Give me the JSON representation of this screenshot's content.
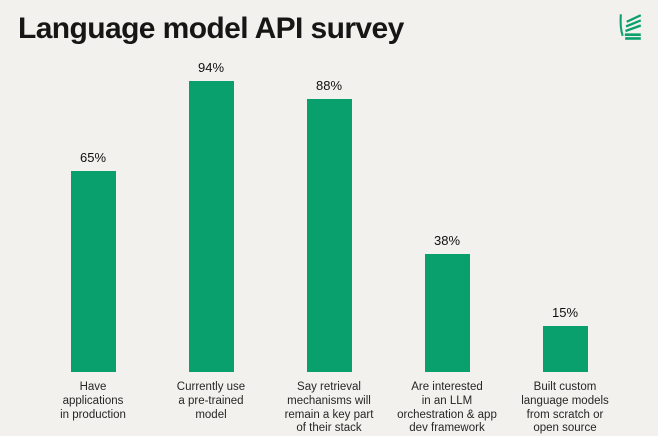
{
  "header": {
    "title": "Language model API survey"
  },
  "logo": {
    "description": "green striped leaf/flag logo mark",
    "color": "#0aa06e"
  },
  "colors": {
    "background": "#f2f1ed",
    "bar": "#0aa06e",
    "title_text": "#161616",
    "label_text": "#262626"
  },
  "chart_data": {
    "type": "bar",
    "title": "Language model API survey",
    "categories": [
      "Have applications in production",
      "Currently use a pre-trained model",
      "Say retrieval mechanisms will remain a key part of their stack",
      "Are interested in an LLM orchestration & app dev framework",
      "Built custom language models from scratch or open source"
    ],
    "category_lines": [
      [
        "Have",
        "applications",
        "in production"
      ],
      [
        "Currently use",
        "a pre-trained",
        "model"
      ],
      [
        "Say retrieval",
        "mechanisms will",
        "remain a key part",
        "of their stack"
      ],
      [
        "Are interested",
        "in an LLM",
        "orchestration & app",
        "dev framework"
      ],
      [
        "Built custom",
        "language models",
        "from scratch or",
        "open source"
      ]
    ],
    "values": [
      65,
      94,
      88,
      38,
      15
    ],
    "value_labels": [
      "65%",
      "94%",
      "88%",
      "38%",
      "15%"
    ],
    "ylim": [
      0,
      100
    ],
    "grid": false,
    "legend": "none",
    "bar_color": "#0aa06e",
    "value_label_position": "above-bar"
  }
}
